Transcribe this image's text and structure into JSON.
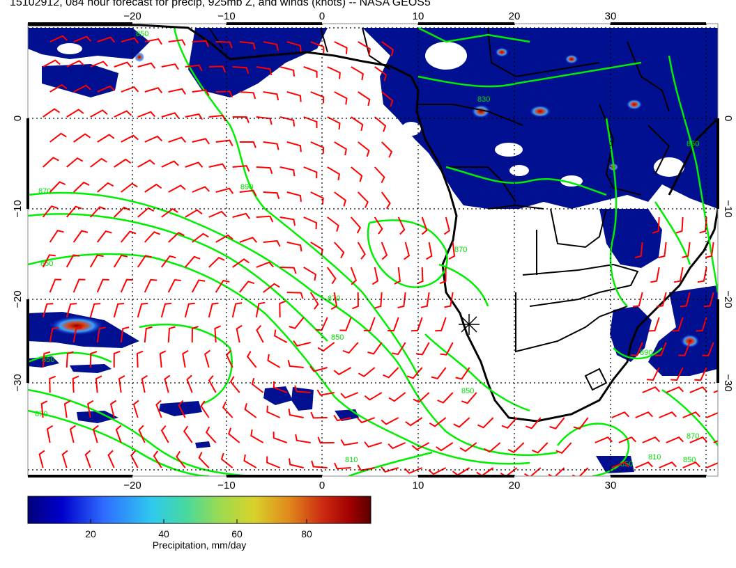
{
  "title": "15102912, 084 hour forecast for precip, 925mb Z, and winds (knots) -- NASA GEOS5",
  "map": {
    "x_ticks": [
      "−20",
      "−10",
      "0",
      "10",
      "20",
      "30"
    ],
    "y_ticks": [
      "0",
      "−10",
      "−20",
      "−30"
    ],
    "contour_labels": [
      "870",
      "890",
      "850",
      "870",
      "850",
      "870",
      "810",
      "850",
      "830",
      "870",
      "850",
      "850",
      "810",
      "870",
      "850",
      "850",
      "890",
      "850"
    ],
    "colors": {
      "ocean_background": "#ffffff",
      "precip_low": "#000080",
      "contours": "#00ee00",
      "wind_barbs": "#ff0000",
      "coastline": "#000000",
      "grid": "#000000"
    },
    "station_marker": "star-cross"
  },
  "colorbar": {
    "label": "Precipitation, mm/day",
    "ticks": [
      "20",
      "40",
      "60",
      "80"
    ],
    "gradient": [
      "#00007a",
      "#0000cc",
      "#2e6bff",
      "#2fc8f0",
      "#46d9a0",
      "#9cdb50",
      "#d8d22a",
      "#e08a1c",
      "#cc2a10",
      "#a00000",
      "#5a0000"
    ]
  }
}
